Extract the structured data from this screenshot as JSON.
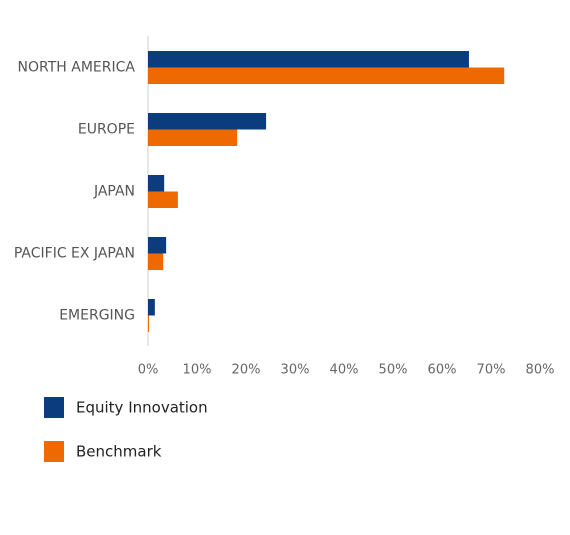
{
  "chart_data": {
    "type": "hbar",
    "categories": [
      "NORTH AMERICA",
      "EUROPE",
      "JAPAN",
      "PACIFIC EX JAPAN",
      "EMERGING"
    ],
    "series": [
      {
        "name": "Equity Innovation",
        "color": "#0b3d7e",
        "values": [
          65.5,
          24.1,
          3.3,
          3.7,
          1.4
        ]
      },
      {
        "name": "Benchmark",
        "color": "#ee6a00",
        "values": [
          72.7,
          18.2,
          6.1,
          3.1,
          0.2
        ]
      }
    ],
    "xlim": [
      0,
      80
    ],
    "xticks": [
      {
        "value": 0,
        "label": "0%"
      },
      {
        "value": 10,
        "label": "10%"
      },
      {
        "value": 20,
        "label": "20%"
      },
      {
        "value": 30,
        "label": "30%"
      },
      {
        "value": 40,
        "label": "40%"
      },
      {
        "value": 50,
        "label": "50%"
      },
      {
        "value": 60,
        "label": "60%"
      },
      {
        "value": 70,
        "label": "70%"
      },
      {
        "value": 80,
        "label": "80%"
      }
    ],
    "grid": false
  }
}
